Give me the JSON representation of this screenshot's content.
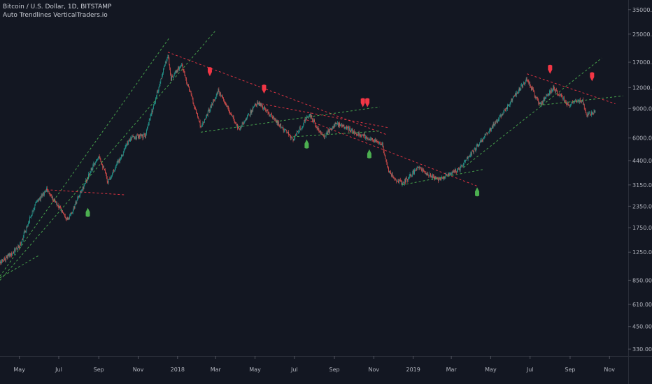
{
  "header": {
    "symbol_line": "Bitcoin / U.S. Dollar, 1D, BITSTAMP",
    "indicator_line": "Auto Trendlines VerticalTraders.io"
  },
  "colors": {
    "background": "#131722",
    "candle_up": "#26a69a",
    "candle_down": "#ef5350",
    "support_line": "#4caf50",
    "resistance_line": "#f23645",
    "signal_up": "#4caf50",
    "signal_down": "#f23645",
    "axis_text": "#b2b5be"
  },
  "chart_data": {
    "type": "candlestick",
    "title": "Bitcoin / U.S. Dollar, 1D, BITSTAMP",
    "y_scale": "log",
    "ylim": [
      300,
      37000
    ],
    "y_ticks": [
      330,
      450,
      610,
      850,
      1250,
      1750,
      2350,
      3150,
      4400,
      6000,
      9000,
      12000,
      17000,
      25000,
      35000
    ],
    "y_tick_labels": [
      "330.00",
      "450.00",
      "610.00",
      "850.00",
      "1250.00",
      "1750.00",
      "2350.00",
      "3150.00",
      "4400.00",
      "6000.00",
      "9000.00",
      "12000.00",
      "17000.00",
      "25000.00",
      "35000.00"
    ],
    "x_range": [
      "2017-04-01",
      "2019-11-30"
    ],
    "x_ticks": [
      {
        "date": "2017-05-01",
        "label": "May"
      },
      {
        "date": "2017-07-01",
        "label": "Jul"
      },
      {
        "date": "2017-09-01",
        "label": "Sep"
      },
      {
        "date": "2017-11-01",
        "label": "Nov"
      },
      {
        "date": "2018-01-01",
        "label": "2018"
      },
      {
        "date": "2018-03-01",
        "label": "Mar"
      },
      {
        "date": "2018-05-01",
        "label": "May"
      },
      {
        "date": "2018-07-01",
        "label": "Jul"
      },
      {
        "date": "2018-09-01",
        "label": "Sep"
      },
      {
        "date": "2018-11-01",
        "label": "Nov"
      },
      {
        "date": "2019-01-01",
        "label": "2019"
      },
      {
        "date": "2019-03-01",
        "label": "Mar"
      },
      {
        "date": "2019-05-01",
        "label": "May"
      },
      {
        "date": "2019-07-01",
        "label": "Jul"
      },
      {
        "date": "2019-09-01",
        "label": "Sep"
      },
      {
        "date": "2019-11-01",
        "label": "Nov"
      }
    ],
    "price_path": [
      [
        "2017-04-01",
        1080
      ],
      [
        "2017-05-01",
        1350
      ],
      [
        "2017-05-25",
        2400
      ],
      [
        "2017-06-12",
        2950
      ],
      [
        "2017-07-16",
        1950
      ],
      [
        "2017-08-05",
        2900
      ],
      [
        "2017-09-01",
        4800
      ],
      [
        "2017-09-15",
        3300
      ],
      [
        "2017-10-20",
        6000
      ],
      [
        "2017-11-12",
        6200
      ],
      [
        "2017-12-17",
        19000
      ],
      [
        "2017-12-22",
        13500
      ],
      [
        "2018-01-07",
        16500
      ],
      [
        "2018-02-06",
        7000
      ],
      [
        "2018-03-05",
        11400
      ],
      [
        "2018-04-06",
        6800
      ],
      [
        "2018-05-05",
        9800
      ],
      [
        "2018-06-29",
        5900
      ],
      [
        "2018-07-24",
        8300
      ],
      [
        "2018-08-14",
        6100
      ],
      [
        "2018-09-04",
        7300
      ],
      [
        "2018-10-11",
        6300
      ],
      [
        "2018-11-14",
        5500
      ],
      [
        "2018-11-25",
        3700
      ],
      [
        "2018-12-15",
        3200
      ],
      [
        "2019-01-08",
        4000
      ],
      [
        "2019-02-07",
        3400
      ],
      [
        "2019-03-15",
        3950
      ],
      [
        "2019-04-02",
        4900
      ],
      [
        "2019-05-15",
        8000
      ],
      [
        "2019-06-26",
        13500
      ],
      [
        "2019-07-16",
        9500
      ],
      [
        "2019-08-06",
        12000
      ],
      [
        "2019-08-29",
        9500
      ],
      [
        "2019-09-20",
        10100
      ],
      [
        "2019-09-26",
        8100
      ],
      [
        "2019-10-10",
        8600
      ]
    ],
    "trendlines": [
      {
        "kind": "support",
        "from": [
          "2017-04-01",
          850
        ],
        "to": [
          "2018-02-28",
          26000
        ]
      },
      {
        "kind": "support",
        "from": [
          "2017-04-01",
          900
        ],
        "to": [
          "2017-12-20",
          24000
        ]
      },
      {
        "kind": "support",
        "from": [
          "2017-04-01",
          880
        ],
        "to": [
          "2017-06-01",
          1200
        ]
      },
      {
        "kind": "resistance",
        "from": [
          "2017-06-12",
          2950
        ],
        "to": [
          "2017-10-10",
          2750
        ]
      },
      {
        "kind": "resistance",
        "from": [
          "2017-12-17",
          19500
        ],
        "to": [
          "2018-11-20",
          6300
        ]
      },
      {
        "kind": "support",
        "from": [
          "2018-02-06",
          6500
        ],
        "to": [
          "2018-11-10",
          9200
        ]
      },
      {
        "kind": "resistance",
        "from": [
          "2018-05-05",
          9700
        ],
        "to": [
          "2018-11-25",
          6900
        ]
      },
      {
        "kind": "support",
        "from": [
          "2018-06-29",
          6100
        ],
        "to": [
          "2018-11-10",
          6600
        ]
      },
      {
        "kind": "resistance",
        "from": [
          "2018-07-20",
          7700
        ],
        "to": [
          "2019-04-10",
          3100
        ]
      },
      {
        "kind": "support",
        "from": [
          "2018-12-15",
          3150
        ],
        "to": [
          "2019-04-20",
          3900
        ]
      },
      {
        "kind": "support",
        "from": [
          "2019-03-20",
          4000
        ],
        "to": [
          "2019-10-20",
          18000
        ]
      },
      {
        "kind": "support",
        "from": [
          "2019-07-15",
          9400
        ],
        "to": [
          "2019-11-22",
          10700
        ]
      },
      {
        "kind": "resistance",
        "from": [
          "2019-06-26",
          14500
        ],
        "to": [
          "2019-11-10",
          9600
        ]
      }
    ],
    "signals": [
      {
        "type": "buy",
        "date": "2017-08-15",
        "price": 2150
      },
      {
        "type": "sell",
        "date": "2018-02-20",
        "price": 15000
      },
      {
        "type": "sell",
        "date": "2018-05-15",
        "price": 11800
      },
      {
        "type": "buy",
        "date": "2018-07-20",
        "price": 5500
      },
      {
        "type": "sell",
        "date": "2018-10-15",
        "price": 9800
      },
      {
        "type": "sell",
        "date": "2018-10-22",
        "price": 9800
      },
      {
        "type": "buy",
        "date": "2018-10-25",
        "price": 4800
      },
      {
        "type": "buy",
        "date": "2019-04-10",
        "price": 2850
      },
      {
        "type": "sell",
        "date": "2019-08-01",
        "price": 15500
      },
      {
        "type": "sell",
        "date": "2019-10-05",
        "price": 14000
      }
    ]
  }
}
